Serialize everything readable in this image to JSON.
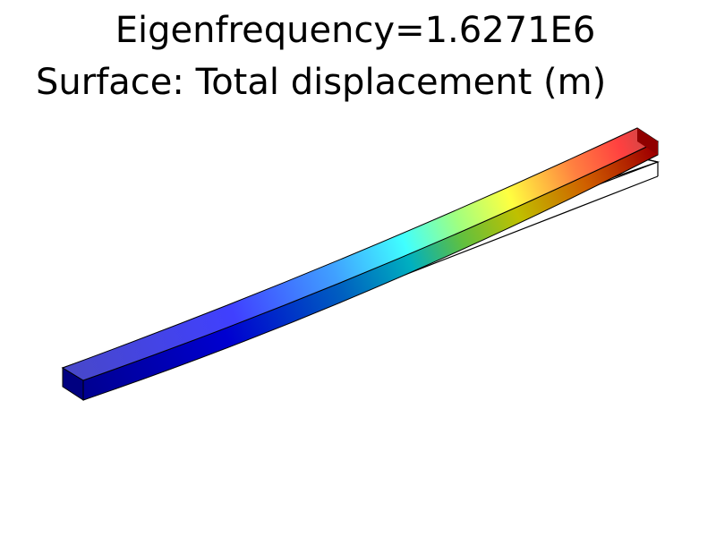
{
  "title": {
    "line1": "Eigenfrequency=1.6271E6",
    "line2": "Surface: Total displacement (m)"
  },
  "colormap": {
    "name": "rainbow",
    "stops": [
      "#00008f",
      "#1f3fff",
      "#3fdfff",
      "#ffff3f",
      "#ff3f3f",
      "#8f0000"
    ]
  },
  "colors": {
    "outline": "#000000",
    "background": "#ffffff"
  }
}
